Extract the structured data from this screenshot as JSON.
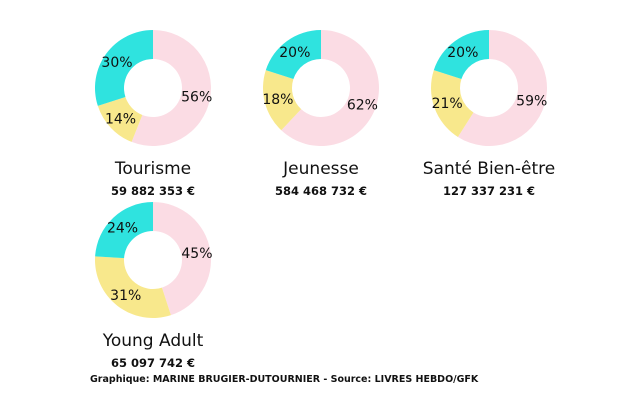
{
  "colors": {
    "rose": "#fbdce4",
    "yellow": "#f8e88c",
    "cyan": "#2fe3df"
  },
  "chart_data": [
    {
      "type": "pie",
      "title": "Tourisme",
      "subtitle": "59 882 353 €",
      "labels": [
        "",
        "",
        ""
      ],
      "values": [
        56,
        14,
        30
      ],
      "value_labels": [
        "56%",
        "14%",
        "30%"
      ],
      "colors": [
        "#fbdce4",
        "#f8e88c",
        "#2fe3df"
      ]
    },
    {
      "type": "pie",
      "title": "Jeunesse",
      "subtitle": "584 468 732 €",
      "labels": [
        "",
        "",
        ""
      ],
      "values": [
        62,
        18,
        20
      ],
      "value_labels": [
        "62%",
        "18%",
        "20%"
      ],
      "colors": [
        "#fbdce4",
        "#f8e88c",
        "#2fe3df"
      ]
    },
    {
      "type": "pie",
      "title": "Santé Bien-être",
      "subtitle": "127 337 231 €",
      "labels": [
        "",
        "",
        ""
      ],
      "values": [
        59,
        21,
        20
      ],
      "value_labels": [
        "59%",
        "21%",
        "20%"
      ],
      "colors": [
        "#fbdce4",
        "#f8e88c",
        "#2fe3df"
      ]
    },
    {
      "type": "pie",
      "title": "Young Adult",
      "subtitle": "65 097 742 €",
      "labels": [
        "",
        "",
        ""
      ],
      "values": [
        45,
        31,
        24
      ],
      "value_labels": [
        "45%",
        "31%",
        "24%"
      ],
      "colors": [
        "#fbdce4",
        "#f8e88c",
        "#2fe3df"
      ]
    }
  ],
  "footer": {
    "credit": "Graphique: MARINE BRUGIER-DUTOURNIER - Source: LIVRES HEBDO/GFK"
  }
}
